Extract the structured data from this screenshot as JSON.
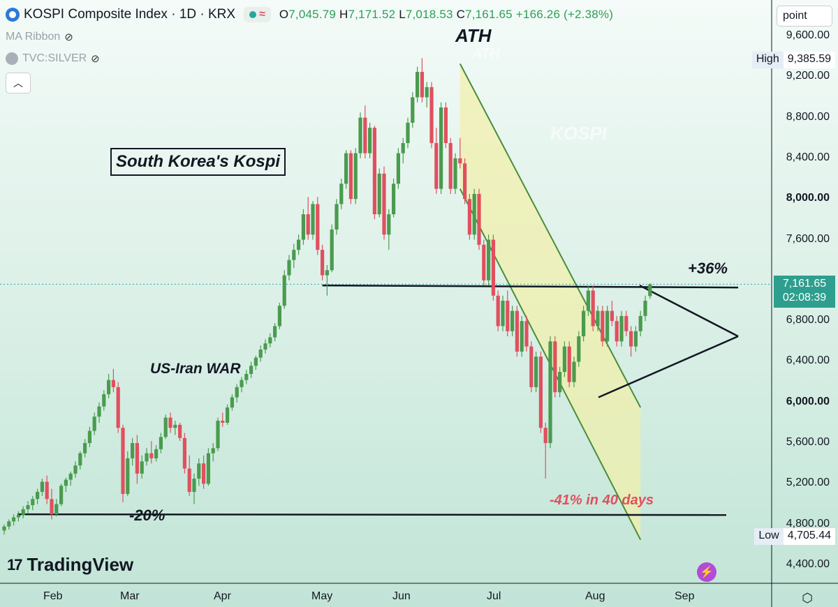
{
  "header": {
    "title": "KOSPI Composite Index · 1D · KRX",
    "ohlc": {
      "open_label": "O",
      "open": "7,045.79",
      "high_label": "H",
      "high": "7,171.52",
      "low_label": "L",
      "low": "7,018.53",
      "close_label": "C",
      "close": "7,161.65",
      "change": "+166.26 (+2.38%)"
    },
    "indicator_1": "MA Ribbon",
    "indicator_2": "TVC:SILVER"
  },
  "axis": {
    "unit_label": "point",
    "y_ticks": [
      "9,600.00",
      "9,200.00",
      "8,800.00",
      "8,400.00",
      "8,000.00",
      "7,600.00",
      "6,800.00",
      "6,400.00",
      "6,000.00",
      "5,600.00",
      "5,200.00",
      "4,800.00",
      "4,400.00"
    ],
    "x_ticks": [
      "Feb",
      "Mar",
      "Apr",
      "May",
      "Jun",
      "Jul",
      "Aug",
      "Sep"
    ],
    "high_label": "High",
    "high_value": "9,385.59",
    "low_label": "Low",
    "low_value": "4,705.44",
    "last_price": "7,161.65",
    "countdown": "02:08:39"
  },
  "annotations": {
    "ath": "ATH",
    "watermark_ath": "ATH",
    "watermark_kospi": "KOSPI",
    "title_box": "South Korea's Kospi",
    "war": "US-Iran WAR",
    "plus36": "+36%",
    "minus20": "-20%",
    "minus41": "-41% in 40 days"
  },
  "brand": {
    "name": "TradingView"
  },
  "chart_data": {
    "type": "candlestick",
    "title": "KOSPI Composite Index · 1D · KRX",
    "y_unit": "point",
    "ylim": [
      4300,
      9800
    ],
    "up_color": "#4a9b4e",
    "down_color": "#e0505f",
    "candles": [
      {
        "o": 4740,
        "h": 4800,
        "l": 4700,
        "c": 4780
      },
      {
        "o": 4780,
        "h": 4850,
        "l": 4750,
        "c": 4830
      },
      {
        "o": 4830,
        "h": 4900,
        "l": 4790,
        "c": 4870
      },
      {
        "o": 4870,
        "h": 4930,
        "l": 4830,
        "c": 4890
      },
      {
        "o": 4890,
        "h": 4980,
        "l": 4860,
        "c": 4950
      },
      {
        "o": 4950,
        "h": 5030,
        "l": 4910,
        "c": 4990
      },
      {
        "o": 4990,
        "h": 5080,
        "l": 4940,
        "c": 5050
      },
      {
        "o": 5050,
        "h": 5150,
        "l": 5000,
        "c": 5120
      },
      {
        "o": 5120,
        "h": 5250,
        "l": 5080,
        "c": 5220
      },
      {
        "o": 5220,
        "h": 5280,
        "l": 5000,
        "c": 5050
      },
      {
        "o": 5050,
        "h": 5150,
        "l": 4850,
        "c": 4900
      },
      {
        "o": 4900,
        "h": 5050,
        "l": 4880,
        "c": 5000
      },
      {
        "o": 5000,
        "h": 5200,
        "l": 4980,
        "c": 5180
      },
      {
        "o": 5180,
        "h": 5260,
        "l": 5120,
        "c": 5240
      },
      {
        "o": 5240,
        "h": 5320,
        "l": 5180,
        "c": 5300
      },
      {
        "o": 5300,
        "h": 5420,
        "l": 5260,
        "c": 5380
      },
      {
        "o": 5380,
        "h": 5520,
        "l": 5340,
        "c": 5500
      },
      {
        "o": 5500,
        "h": 5640,
        "l": 5460,
        "c": 5600
      },
      {
        "o": 5600,
        "h": 5760,
        "l": 5560,
        "c": 5720
      },
      {
        "o": 5720,
        "h": 5900,
        "l": 5680,
        "c": 5860
      },
      {
        "o": 5860,
        "h": 6000,
        "l": 5800,
        "c": 5960
      },
      {
        "o": 5960,
        "h": 6120,
        "l": 5920,
        "c": 6080
      },
      {
        "o": 6080,
        "h": 6280,
        "l": 6040,
        "c": 6220
      },
      {
        "o": 6220,
        "h": 6330,
        "l": 6100,
        "c": 6150
      },
      {
        "o": 6150,
        "h": 6200,
        "l": 5700,
        "c": 5750
      },
      {
        "o": 5750,
        "h": 5780,
        "l": 5020,
        "c": 5100
      },
      {
        "o": 5100,
        "h": 5520,
        "l": 5080,
        "c": 5450
      },
      {
        "o": 5450,
        "h": 5650,
        "l": 5380,
        "c": 5600
      },
      {
        "o": 5600,
        "h": 5680,
        "l": 5200,
        "c": 5300
      },
      {
        "o": 5300,
        "h": 5480,
        "l": 5250,
        "c": 5420
      },
      {
        "o": 5420,
        "h": 5550,
        "l": 5380,
        "c": 5500
      },
      {
        "o": 5500,
        "h": 5620,
        "l": 5400,
        "c": 5450
      },
      {
        "o": 5450,
        "h": 5580,
        "l": 5420,
        "c": 5540
      },
      {
        "o": 5540,
        "h": 5700,
        "l": 5500,
        "c": 5660
      },
      {
        "o": 5660,
        "h": 5880,
        "l": 5640,
        "c": 5850
      },
      {
        "o": 5850,
        "h": 5900,
        "l": 5700,
        "c": 5750
      },
      {
        "o": 5750,
        "h": 5820,
        "l": 5680,
        "c": 5780
      },
      {
        "o": 5780,
        "h": 5800,
        "l": 5620,
        "c": 5650
      },
      {
        "o": 5650,
        "h": 5700,
        "l": 5300,
        "c": 5350
      },
      {
        "o": 5350,
        "h": 5480,
        "l": 5080,
        "c": 5120
      },
      {
        "o": 5120,
        "h": 5300,
        "l": 5000,
        "c": 5250
      },
      {
        "o": 5250,
        "h": 5450,
        "l": 5180,
        "c": 5400
      },
      {
        "o": 5400,
        "h": 5480,
        "l": 5150,
        "c": 5200
      },
      {
        "o": 5200,
        "h": 5550,
        "l": 5180,
        "c": 5500
      },
      {
        "o": 5500,
        "h": 5600,
        "l": 5420,
        "c": 5550
      },
      {
        "o": 5550,
        "h": 5850,
        "l": 5520,
        "c": 5820
      },
      {
        "o": 5820,
        "h": 5900,
        "l": 5760,
        "c": 5800
      },
      {
        "o": 5800,
        "h": 5980,
        "l": 5780,
        "c": 5950
      },
      {
        "o": 5950,
        "h": 6080,
        "l": 5920,
        "c": 6050
      },
      {
        "o": 6050,
        "h": 6180,
        "l": 6000,
        "c": 6150
      },
      {
        "o": 6150,
        "h": 6250,
        "l": 6100,
        "c": 6220
      },
      {
        "o": 6220,
        "h": 6320,
        "l": 6180,
        "c": 6280
      },
      {
        "o": 6280,
        "h": 6400,
        "l": 6240,
        "c": 6360
      },
      {
        "o": 6360,
        "h": 6460,
        "l": 6320,
        "c": 6440
      },
      {
        "o": 6440,
        "h": 6560,
        "l": 6400,
        "c": 6520
      },
      {
        "o": 6520,
        "h": 6620,
        "l": 6480,
        "c": 6580
      },
      {
        "o": 6580,
        "h": 6680,
        "l": 6540,
        "c": 6640
      },
      {
        "o": 6640,
        "h": 6780,
        "l": 6600,
        "c": 6750
      },
      {
        "o": 6750,
        "h": 6980,
        "l": 6720,
        "c": 6950
      },
      {
        "o": 6950,
        "h": 7300,
        "l": 6920,
        "c": 7250
      },
      {
        "o": 7250,
        "h": 7450,
        "l": 7200,
        "c": 7400
      },
      {
        "o": 7400,
        "h": 7560,
        "l": 7320,
        "c": 7500
      },
      {
        "o": 7500,
        "h": 7650,
        "l": 7450,
        "c": 7600
      },
      {
        "o": 7600,
        "h": 7900,
        "l": 7550,
        "c": 7850
      },
      {
        "o": 7850,
        "h": 8020,
        "l": 7600,
        "c": 7650
      },
      {
        "o": 7650,
        "h": 7980,
        "l": 7600,
        "c": 7950
      },
      {
        "o": 7950,
        "h": 8020,
        "l": 7450,
        "c": 7500
      },
      {
        "o": 7500,
        "h": 7550,
        "l": 7200,
        "c": 7250
      },
      {
        "o": 7250,
        "h": 7350,
        "l": 7050,
        "c": 7300
      },
      {
        "o": 7300,
        "h": 7750,
        "l": 7280,
        "c": 7700
      },
      {
        "o": 7700,
        "h": 8000,
        "l": 7650,
        "c": 7950
      },
      {
        "o": 7950,
        "h": 8200,
        "l": 7900,
        "c": 8150
      },
      {
        "o": 8150,
        "h": 8480,
        "l": 8100,
        "c": 8450
      },
      {
        "o": 8450,
        "h": 8480,
        "l": 7950,
        "c": 8000
      },
      {
        "o": 8000,
        "h": 8500,
        "l": 7950,
        "c": 8450
      },
      {
        "o": 8450,
        "h": 8850,
        "l": 8400,
        "c": 8800
      },
      {
        "o": 8800,
        "h": 8920,
        "l": 8400,
        "c": 8450
      },
      {
        "o": 8450,
        "h": 8750,
        "l": 8400,
        "c": 8700
      },
      {
        "o": 8700,
        "h": 8720,
        "l": 7800,
        "c": 7850
      },
      {
        "o": 7850,
        "h": 8300,
        "l": 7820,
        "c": 8250
      },
      {
        "o": 8250,
        "h": 8320,
        "l": 7600,
        "c": 7650
      },
      {
        "o": 7650,
        "h": 7900,
        "l": 7500,
        "c": 7850
      },
      {
        "o": 7850,
        "h": 8200,
        "l": 7820,
        "c": 8150
      },
      {
        "o": 8150,
        "h": 8500,
        "l": 8100,
        "c": 8450
      },
      {
        "o": 8450,
        "h": 8600,
        "l": 8350,
        "c": 8550
      },
      {
        "o": 8550,
        "h": 8800,
        "l": 8500,
        "c": 8750
      },
      {
        "o": 8750,
        "h": 9050,
        "l": 8700,
        "c": 9000
      },
      {
        "o": 9000,
        "h": 9300,
        "l": 8950,
        "c": 9250
      },
      {
        "o": 9250,
        "h": 9385,
        "l": 8950,
        "c": 9000
      },
      {
        "o": 9000,
        "h": 9150,
        "l": 8900,
        "c": 9100
      },
      {
        "o": 9100,
        "h": 9150,
        "l": 8500,
        "c": 8550
      },
      {
        "o": 8550,
        "h": 8700,
        "l": 8050,
        "c": 8100
      },
      {
        "o": 8100,
        "h": 8950,
        "l": 8050,
        "c": 8900
      },
      {
        "o": 8900,
        "h": 8950,
        "l": 8500,
        "c": 8550
      },
      {
        "o": 8550,
        "h": 8600,
        "l": 8050,
        "c": 8100
      },
      {
        "o": 8100,
        "h": 8450,
        "l": 8050,
        "c": 8400
      },
      {
        "o": 8400,
        "h": 8600,
        "l": 8300,
        "c": 8350
      },
      {
        "o": 8350,
        "h": 8400,
        "l": 7950,
        "c": 8000
      },
      {
        "o": 8000,
        "h": 8050,
        "l": 7600,
        "c": 7650
      },
      {
        "o": 7650,
        "h": 8100,
        "l": 7600,
        "c": 8050
      },
      {
        "o": 8050,
        "h": 8100,
        "l": 7500,
        "c": 7550
      },
      {
        "o": 7550,
        "h": 7600,
        "l": 7150,
        "c": 7200
      },
      {
        "o": 7200,
        "h": 7650,
        "l": 7150,
        "c": 7600
      },
      {
        "o": 7600,
        "h": 7650,
        "l": 7000,
        "c": 7050
      },
      {
        "o": 7050,
        "h": 7100,
        "l": 6700,
        "c": 6750
      },
      {
        "o": 6750,
        "h": 7050,
        "l": 6700,
        "c": 7000
      },
      {
        "o": 7000,
        "h": 7100,
        "l": 6650,
        "c": 6700
      },
      {
        "o": 6700,
        "h": 6950,
        "l": 6650,
        "c": 6900
      },
      {
        "o": 6900,
        "h": 6950,
        "l": 6450,
        "c": 6500
      },
      {
        "o": 6500,
        "h": 6850,
        "l": 6450,
        "c": 6800
      },
      {
        "o": 6800,
        "h": 6850,
        "l": 6500,
        "c": 6550
      },
      {
        "o": 6550,
        "h": 6600,
        "l": 6100,
        "c": 6150
      },
      {
        "o": 6150,
        "h": 6500,
        "l": 6100,
        "c": 6450
      },
      {
        "o": 6450,
        "h": 6500,
        "l": 5700,
        "c": 5750
      },
      {
        "o": 5750,
        "h": 5800,
        "l": 5250,
        "c": 5600
      },
      {
        "o": 5600,
        "h": 6650,
        "l": 5550,
        "c": 6600
      },
      {
        "o": 6600,
        "h": 6650,
        "l": 6050,
        "c": 6100
      },
      {
        "o": 6100,
        "h": 6350,
        "l": 6050,
        "c": 6300
      },
      {
        "o": 6300,
        "h": 6600,
        "l": 6250,
        "c": 6550
      },
      {
        "o": 6550,
        "h": 6600,
        "l": 6150,
        "c": 6200
      },
      {
        "o": 6200,
        "h": 6450,
        "l": 6150,
        "c": 6400
      },
      {
        "o": 6400,
        "h": 6700,
        "l": 6350,
        "c": 6650
      },
      {
        "o": 6650,
        "h": 6950,
        "l": 6600,
        "c": 6900
      },
      {
        "o": 6900,
        "h": 7150,
        "l": 6850,
        "c": 7100
      },
      {
        "o": 7100,
        "h": 7150,
        "l": 6700,
        "c": 6750
      },
      {
        "o": 6750,
        "h": 6950,
        "l": 6700,
        "c": 6900
      },
      {
        "o": 6900,
        "h": 6950,
        "l": 6550,
        "c": 6600
      },
      {
        "o": 6600,
        "h": 6950,
        "l": 6550,
        "c": 6900
      },
      {
        "o": 6900,
        "h": 7000,
        "l": 6750,
        "c": 6800
      },
      {
        "o": 6800,
        "h": 6850,
        "l": 6550,
        "c": 6600
      },
      {
        "o": 6600,
        "h": 6900,
        "l": 6550,
        "c": 6850
      },
      {
        "o": 6850,
        "h": 6900,
        "l": 6650,
        "c": 6700
      },
      {
        "o": 6700,
        "h": 6750,
        "l": 6450,
        "c": 6550
      },
      {
        "o": 6550,
        "h": 6750,
        "l": 6500,
        "c": 6700
      },
      {
        "o": 6700,
        "h": 6900,
        "l": 6650,
        "c": 6850
      },
      {
        "o": 6850,
        "h": 7050,
        "l": 6800,
        "c": 7000
      },
      {
        "o": 7045.79,
        "h": 7171.52,
        "l": 7018.53,
        "c": 7161.65
      }
    ],
    "x_labels": [
      "Feb",
      "Mar",
      "Apr",
      "May",
      "Jun",
      "Jul",
      "Aug",
      "Sep"
    ],
    "lines": {
      "resistance": 7150,
      "support": 4900,
      "triangle_upper_start": 7150,
      "triangle_apex": 6650,
      "triangle_lower_start": 6050
    },
    "grid": false
  }
}
